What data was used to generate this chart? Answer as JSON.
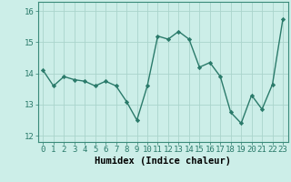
{
  "x": [
    0,
    1,
    2,
    3,
    4,
    5,
    6,
    7,
    8,
    9,
    10,
    11,
    12,
    13,
    14,
    15,
    16,
    17,
    18,
    19,
    20,
    21,
    22,
    23
  ],
  "y": [
    14.1,
    13.6,
    13.9,
    13.8,
    13.75,
    13.6,
    13.75,
    13.6,
    13.1,
    12.5,
    13.6,
    15.2,
    15.1,
    15.35,
    15.1,
    14.2,
    14.35,
    13.9,
    12.75,
    12.4,
    13.3,
    12.85,
    13.65,
    15.75
  ],
  "line_color": "#2a7a6a",
  "marker": "D",
  "marker_size": 2.2,
  "bg_color": "#cceee8",
  "grid_color": "#aad4cc",
  "xlabel": "Humidex (Indice chaleur)",
  "xlim": [
    -0.5,
    23.5
  ],
  "ylim": [
    11.8,
    16.3
  ],
  "yticks": [
    12,
    13,
    14,
    15,
    16
  ],
  "xticks": [
    0,
    1,
    2,
    3,
    4,
    5,
    6,
    7,
    8,
    9,
    10,
    11,
    12,
    13,
    14,
    15,
    16,
    17,
    18,
    19,
    20,
    21,
    22,
    23
  ],
  "tick_label_fontsize": 6.5,
  "xlabel_fontsize": 7.5,
  "line_width": 1.0
}
